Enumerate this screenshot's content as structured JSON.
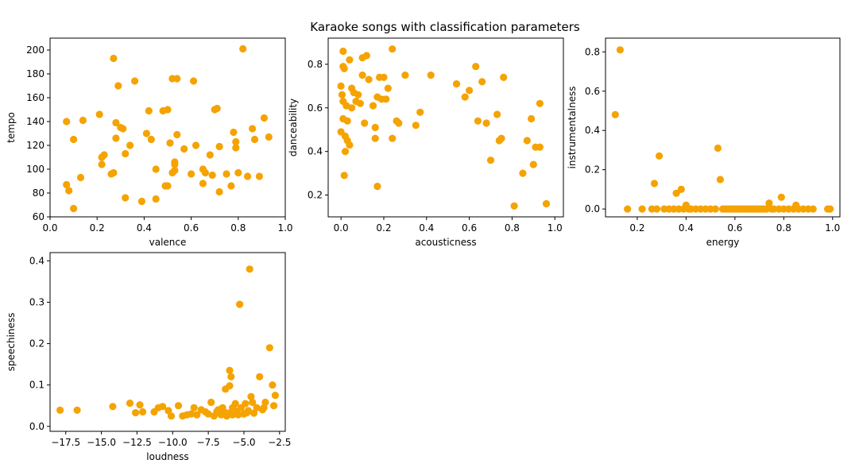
{
  "figure": {
    "title": "Karaoke songs with classification parameters"
  },
  "colors": {
    "marker": "#F5A300",
    "axes": "#000000",
    "background": "#ffffff"
  },
  "chart_data": [
    {
      "type": "scatter",
      "xlabel": "valence",
      "ylabel": "tempo",
      "xlim": [
        0.0,
        1.0
      ],
      "ylim": [
        60,
        210
      ],
      "xticks": [
        "0.0",
        "0.2",
        "0.4",
        "0.6",
        "0.8",
        "1.0"
      ],
      "yticks": [
        "60",
        "80",
        "100",
        "120",
        "140",
        "160",
        "180",
        "200"
      ],
      "grid": false,
      "x": [
        0.07,
        0.07,
        0.08,
        0.1,
        0.1,
        0.13,
        0.14,
        0.21,
        0.22,
        0.22,
        0.23,
        0.26,
        0.27,
        0.27,
        0.28,
        0.28,
        0.29,
        0.3,
        0.31,
        0.32,
        0.32,
        0.34,
        0.36,
        0.39,
        0.41,
        0.42,
        0.43,
        0.45,
        0.45,
        0.48,
        0.49,
        0.5,
        0.5,
        0.51,
        0.52,
        0.52,
        0.53,
        0.53,
        0.53,
        0.54,
        0.54,
        0.57,
        0.6,
        0.61,
        0.62,
        0.65,
        0.65,
        0.66,
        0.68,
        0.69,
        0.7,
        0.71,
        0.72,
        0.72,
        0.75,
        0.77,
        0.78,
        0.79,
        0.79,
        0.8,
        0.82,
        0.84,
        0.86,
        0.87,
        0.89,
        0.91,
        0.93
      ],
      "y": [
        140,
        87,
        82,
        67,
        125,
        93,
        141,
        146,
        104,
        110,
        112,
        96,
        97,
        193,
        139,
        126,
        170,
        135,
        134,
        76,
        113,
        120,
        174,
        73,
        130,
        149,
        125,
        100,
        75,
        149,
        86,
        150,
        86,
        122,
        97,
        176,
        106,
        104,
        99,
        129,
        176,
        117,
        96,
        174,
        120,
        100,
        88,
        97,
        112,
        95,
        150,
        151,
        81,
        119,
        96,
        86,
        131,
        118,
        123,
        97,
        201,
        94,
        134,
        125,
        94,
        143,
        127
      ]
    },
    {
      "type": "scatter",
      "xlabel": "acousticness",
      "ylabel": "danceability",
      "xlim": [
        -0.06,
        1.04
      ],
      "ylim": [
        0.1,
        0.92
      ],
      "xticks": [
        "0.0",
        "0.2",
        "0.4",
        "0.6",
        "0.8",
        "1.0"
      ],
      "yticks": [
        "0.2",
        "0.4",
        "0.6",
        "0.8"
      ],
      "grid": false,
      "x": [
        0.0,
        0.0,
        0.005,
        0.01,
        0.01,
        0.01,
        0.01,
        0.015,
        0.015,
        0.02,
        0.02,
        0.025,
        0.03,
        0.03,
        0.04,
        0.04,
        0.05,
        0.05,
        0.06,
        0.07,
        0.08,
        0.09,
        0.1,
        0.1,
        0.11,
        0.12,
        0.13,
        0.15,
        0.16,
        0.16,
        0.17,
        0.17,
        0.18,
        0.19,
        0.2,
        0.21,
        0.22,
        0.24,
        0.24,
        0.26,
        0.27,
        0.3,
        0.35,
        0.37,
        0.42,
        0.54,
        0.58,
        0.6,
        0.63,
        0.64,
        0.66,
        0.68,
        0.7,
        0.73,
        0.74,
        0.75,
        0.76,
        0.81,
        0.85,
        0.87,
        0.89,
        0.9,
        0.91,
        0.93,
        0.93,
        0.96
      ],
      "y": [
        0.49,
        0.7,
        0.66,
        0.86,
        0.79,
        0.63,
        0.55,
        0.29,
        0.78,
        0.47,
        0.4,
        0.61,
        0.45,
        0.54,
        0.82,
        0.43,
        0.69,
        0.6,
        0.67,
        0.63,
        0.66,
        0.62,
        0.83,
        0.75,
        0.53,
        0.84,
        0.73,
        0.61,
        0.46,
        0.51,
        0.65,
        0.24,
        0.74,
        0.64,
        0.74,
        0.64,
        0.69,
        0.46,
        0.87,
        0.54,
        0.53,
        0.75,
        0.52,
        0.58,
        0.75,
        0.71,
        0.65,
        0.68,
        0.79,
        0.54,
        0.72,
        0.53,
        0.36,
        0.57,
        0.45,
        0.46,
        0.74,
        0.15,
        0.3,
        0.45,
        0.55,
        0.34,
        0.42,
        0.62,
        0.42,
        0.16
      ]
    },
    {
      "type": "scatter",
      "xlabel": "energy",
      "ylabel": "instrumentalness",
      "xlim": [
        0.07,
        1.03
      ],
      "ylim": [
        -0.04,
        0.87
      ],
      "xticks": [
        "0.2",
        "0.4",
        "0.6",
        "0.8",
        "1.0"
      ],
      "yticks": [
        "0.0",
        "0.2",
        "0.4",
        "0.6",
        "0.8"
      ],
      "grid": false,
      "x": [
        0.11,
        0.13,
        0.16,
        0.22,
        0.26,
        0.27,
        0.28,
        0.29,
        0.31,
        0.33,
        0.35,
        0.36,
        0.37,
        0.38,
        0.39,
        0.4,
        0.41,
        0.42,
        0.44,
        0.46,
        0.48,
        0.5,
        0.52,
        0.53,
        0.54,
        0.55,
        0.56,
        0.57,
        0.58,
        0.59,
        0.6,
        0.61,
        0.62,
        0.63,
        0.64,
        0.65,
        0.66,
        0.67,
        0.68,
        0.69,
        0.7,
        0.71,
        0.72,
        0.73,
        0.74,
        0.75,
        0.76,
        0.78,
        0.79,
        0.8,
        0.82,
        0.84,
        0.85,
        0.86,
        0.88,
        0.9,
        0.92,
        0.98,
        0.99
      ],
      "y": [
        0.48,
        0.81,
        0.0,
        0.0,
        0.0,
        0.13,
        0.0,
        0.27,
        0.0,
        0.0,
        0.0,
        0.08,
        0.0,
        0.1,
        0.0,
        0.02,
        0.0,
        0.0,
        0.0,
        0.0,
        0.0,
        0.0,
        0.0,
        0.31,
        0.15,
        0.0,
        0.0,
        0.0,
        0.0,
        0.0,
        0.0,
        0.0,
        0.0,
        0.0,
        0.0,
        0.0,
        0.0,
        0.0,
        0.0,
        0.0,
        0.0,
        0.0,
        0.0,
        0.0,
        0.03,
        0.0,
        0.0,
        0.0,
        0.06,
        0.0,
        0.0,
        0.0,
        0.02,
        0.0,
        0.0,
        0.0,
        0.0,
        0.0,
        0.0
      ]
    },
    {
      "type": "scatter",
      "xlabel": "loudness",
      "ylabel": "speechiness",
      "xlim": [
        -18.6,
        -2.1
      ],
      "ylim": [
        -0.012,
        0.42
      ],
      "xticks": [
        "−17.5",
        "−15.0",
        "−12.5",
        "−10.0",
        "−7.5",
        "−5.0",
        "−2.5"
      ],
      "yticks": [
        "0.0",
        "0.1",
        "0.2",
        "0.3",
        "0.4"
      ],
      "grid": false,
      "x": [
        -17.9,
        -16.7,
        -14.2,
        -13.0,
        -12.6,
        -12.3,
        -12.1,
        -11.3,
        -11.0,
        -10.7,
        -10.3,
        -10.1,
        -9.6,
        -9.3,
        -9.0,
        -8.7,
        -8.5,
        -8.3,
        -8.0,
        -7.7,
        -7.5,
        -7.3,
        -7.1,
        -6.9,
        -6.8,
        -6.7,
        -6.6,
        -6.5,
        -6.4,
        -6.3,
        -6.2,
        -6.1,
        -6.0,
        -6.0,
        -5.9,
        -5.8,
        -5.8,
        -5.7,
        -5.6,
        -5.5,
        -5.4,
        -5.3,
        -5.2,
        -5.0,
        -4.9,
        -4.8,
        -4.7,
        -4.6,
        -4.5,
        -4.4,
        -4.3,
        -4.1,
        -3.9,
        -3.7,
        -3.6,
        -3.5,
        -3.2,
        -3.0,
        -2.9,
        -2.8
      ],
      "y": [
        0.039,
        0.039,
        0.048,
        0.056,
        0.033,
        0.052,
        0.035,
        0.035,
        0.045,
        0.048,
        0.038,
        0.025,
        0.05,
        0.025,
        0.028,
        0.03,
        0.045,
        0.028,
        0.04,
        0.035,
        0.03,
        0.058,
        0.025,
        0.036,
        0.04,
        0.033,
        0.028,
        0.045,
        0.035,
        0.09,
        0.025,
        0.032,
        0.135,
        0.098,
        0.12,
        0.045,
        0.028,
        0.04,
        0.055,
        0.035,
        0.028,
        0.295,
        0.045,
        0.03,
        0.055,
        0.033,
        0.038,
        0.38,
        0.072,
        0.058,
        0.032,
        0.045,
        0.12,
        0.04,
        0.045,
        0.058,
        0.19,
        0.1,
        0.05,
        0.075
      ]
    }
  ]
}
